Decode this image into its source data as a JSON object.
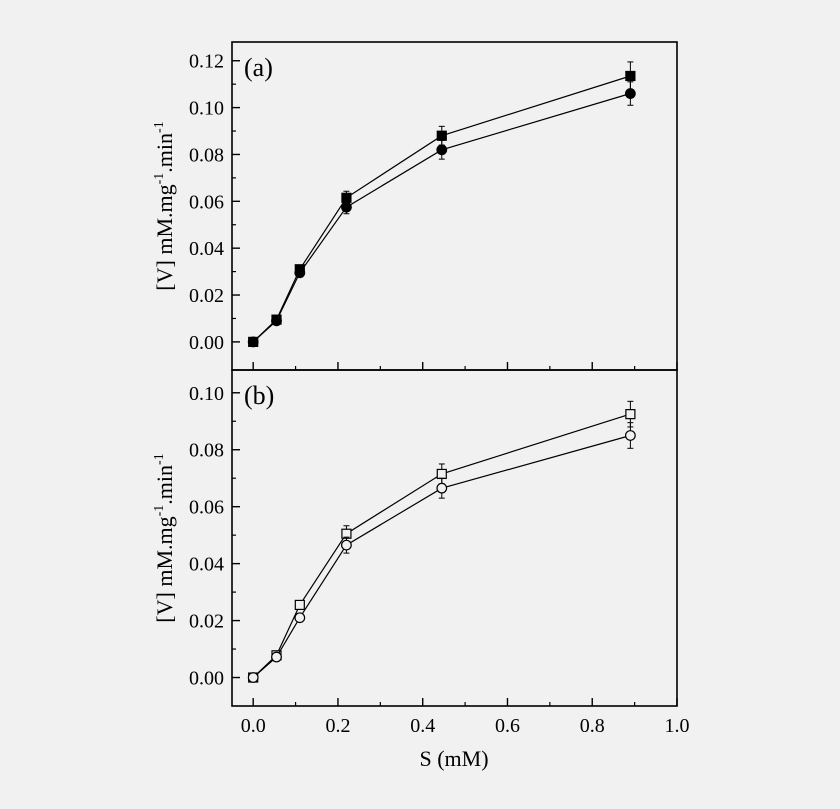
{
  "chart_data": [
    {
      "type": "line",
      "panel_label": "(a)",
      "ylabel": "[V] mM.mg",
      "ylabel_sup1": "-1",
      "ylabel_mid": ".min",
      "ylabel_sup2": "-1",
      "xlim": [
        -0.05,
        1.0
      ],
      "ylim": [
        -0.012,
        0.128
      ],
      "yticks": [
        0.0,
        0.02,
        0.04,
        0.06,
        0.08,
        0.1,
        0.12
      ],
      "ytick_labels": [
        "0.00",
        "0.02",
        "0.04",
        "0.06",
        "0.08",
        "0.10",
        "0.12"
      ],
      "grid": false,
      "series": [
        {
          "marker": "filled-square",
          "x": [
            0.0,
            0.055,
            0.11,
            0.22,
            0.445,
            0.89
          ],
          "y": [
            0.0,
            0.0095,
            0.031,
            0.0615,
            0.088,
            0.1135
          ],
          "err": [
            0,
            0.0008,
            0.0015,
            0.0028,
            0.004,
            0.006
          ]
        },
        {
          "marker": "filled-circle",
          "x": [
            0.0,
            0.055,
            0.11,
            0.22,
            0.445,
            0.89
          ],
          "y": [
            0.0,
            0.009,
            0.0295,
            0.0575,
            0.082,
            0.106
          ],
          "err": [
            0,
            0.0008,
            0.0015,
            0.0028,
            0.004,
            0.005
          ]
        }
      ]
    },
    {
      "type": "line",
      "panel_label": "(b)",
      "ylabel": "[V] mM.mg",
      "ylabel_sup1": "-1",
      "ylabel_mid": ".min",
      "ylabel_sup2": "-1",
      "xlabel": "S (mM)",
      "xlim": [
        -0.05,
        1.0
      ],
      "ylim": [
        -0.01,
        0.108
      ],
      "xticks": [
        0.0,
        0.2,
        0.4,
        0.6,
        0.8,
        1.0
      ],
      "xtick_labels": [
        "0.0",
        "0.2",
        "0.4",
        "0.6",
        "0.8",
        "1.0"
      ],
      "yticks": [
        0.0,
        0.02,
        0.04,
        0.06,
        0.08,
        0.1
      ],
      "ytick_labels": [
        "0.00",
        "0.02",
        "0.04",
        "0.06",
        "0.08",
        "0.10"
      ],
      "grid": false,
      "series": [
        {
          "marker": "open-square",
          "x": [
            0.0,
            0.055,
            0.11,
            0.22,
            0.445,
            0.89
          ],
          "y": [
            0.0,
            0.0078,
            0.0255,
            0.0505,
            0.0715,
            0.0925
          ],
          "err": [
            0,
            0.0008,
            0.0015,
            0.0028,
            0.0035,
            0.0045
          ]
        },
        {
          "marker": "open-circle",
          "x": [
            0.0,
            0.055,
            0.11,
            0.22,
            0.445,
            0.89
          ],
          "y": [
            0.0,
            0.0072,
            0.021,
            0.0465,
            0.0665,
            0.085
          ],
          "err": [
            0,
            0.0008,
            0.0015,
            0.0028,
            0.0035,
            0.0045
          ]
        }
      ]
    }
  ]
}
